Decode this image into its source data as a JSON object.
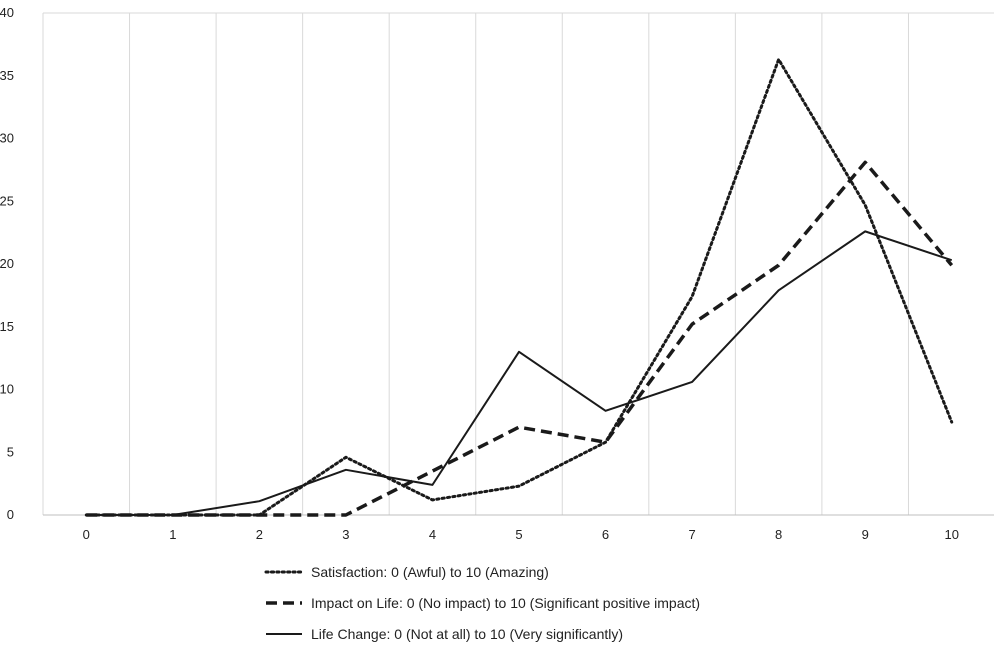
{
  "chart_data": {
    "type": "line",
    "x": [
      0,
      1,
      2,
      3,
      4,
      5,
      6,
      7,
      8,
      9,
      10
    ],
    "xlim": [
      0,
      10
    ],
    "ylim": [
      0,
      40
    ],
    "yticks": [
      0,
      5,
      10,
      15,
      20,
      25,
      30,
      35,
      40
    ],
    "xticks": [
      0,
      1,
      2,
      3,
      4,
      5,
      6,
      7,
      8,
      9,
      10
    ],
    "grid": "vertical",
    "legend_position": "bottom",
    "series": [
      {
        "name": "Satisfaction: 0 (Awful) to 10 (Amazing)",
        "style": "dotted",
        "values": [
          0,
          0,
          0,
          4.6,
          1.2,
          2.3,
          5.8,
          17.4,
          36.3,
          24.7,
          7.4
        ]
      },
      {
        "name": "Impact on Life: 0 (No impact) to 10 (Significant positive impact)",
        "style": "dashed",
        "values": [
          0,
          0,
          0,
          0,
          3.5,
          7.0,
          5.8,
          15.2,
          19.9,
          28.1,
          19.9
        ]
      },
      {
        "name": "Life Change: 0 (Not at all) to 10 (Very significantly)",
        "style": "solid",
        "values": [
          0,
          0,
          1.1,
          3.6,
          2.4,
          13.0,
          8.3,
          10.6,
          17.9,
          22.6,
          20.3
        ]
      }
    ]
  }
}
